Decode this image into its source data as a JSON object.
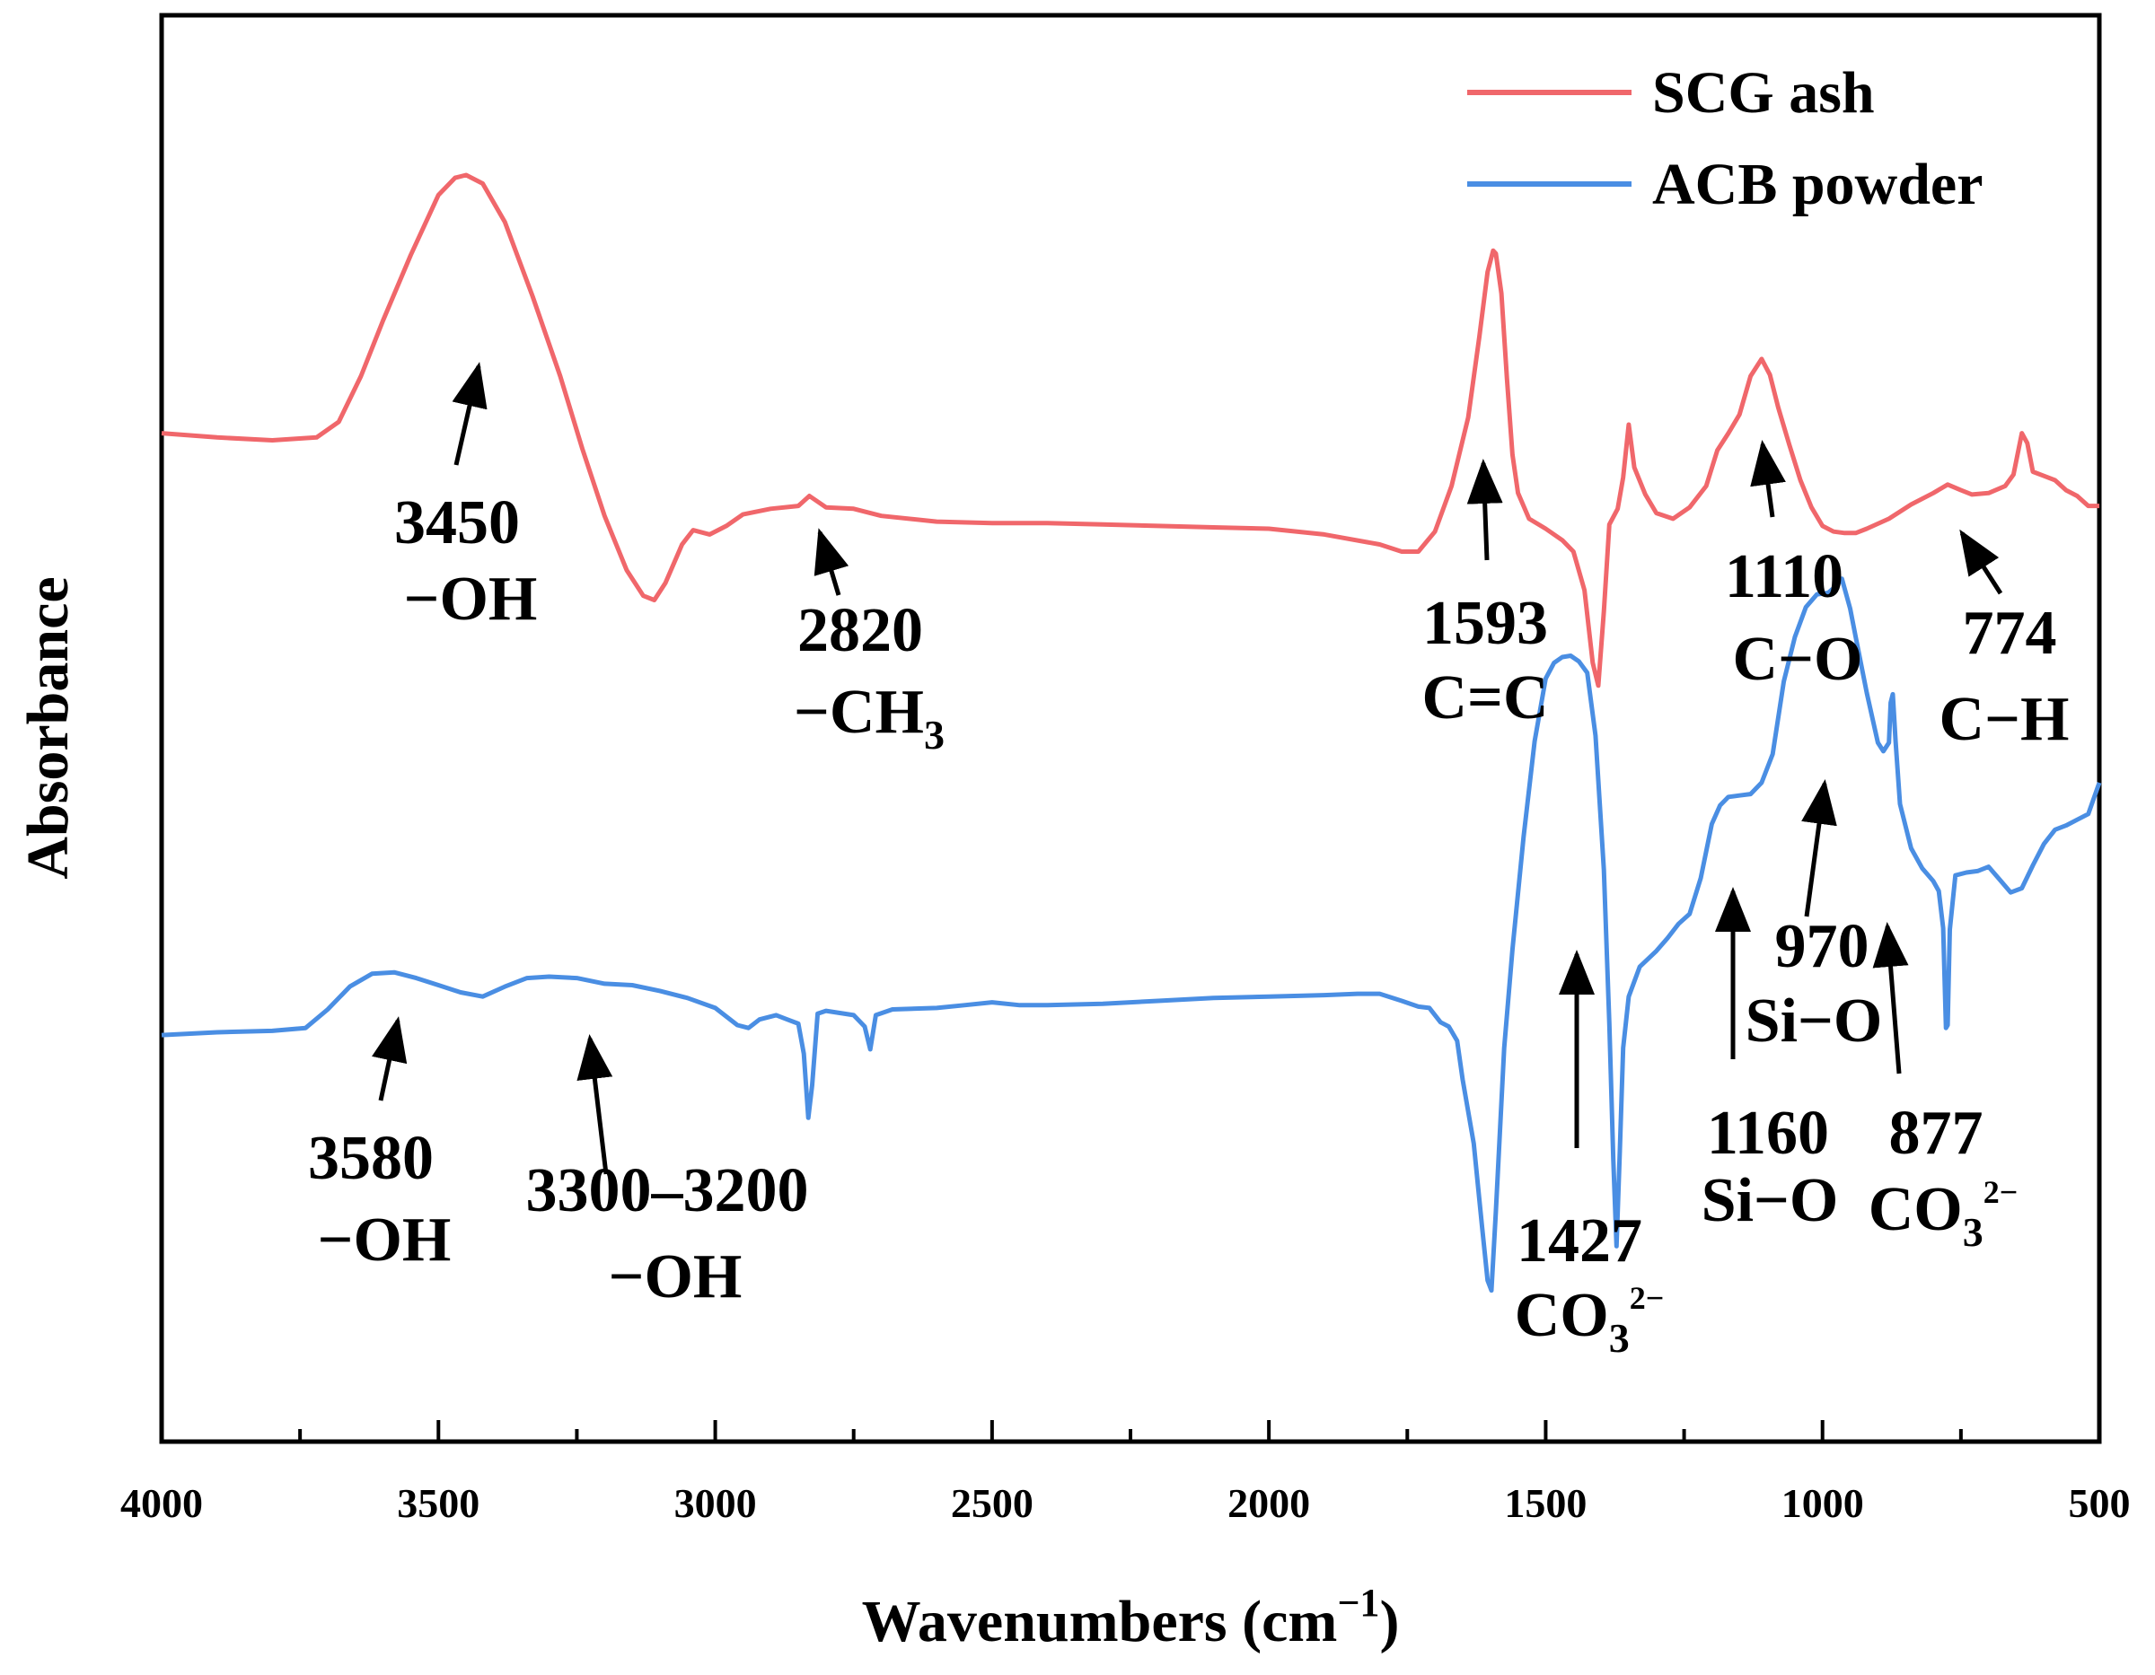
{
  "chart_data": {
    "type": "line",
    "title": "",
    "xlabel": "Wavenumbers (cm",
    "xlabel_sup": "−1",
    "xlabel_close": ")",
    "ylabel": "Absorbance",
    "xlim": [
      4000,
      500
    ],
    "ylim": [
      0,
      100
    ],
    "x_reversed": true,
    "y_ticks_shown": false,
    "x_ticks": [
      4000,
      3500,
      3000,
      2500,
      2000,
      1500,
      1000,
      500
    ],
    "x_tick_labels": [
      "4000",
      "3500",
      "3000",
      "2500",
      "2000",
      "1500",
      "1000",
      "500"
    ],
    "legend_position": "top-right",
    "series": [
      {
        "name": "SCG ash",
        "color": "#f0676b",
        "points": [
          [
            4000,
            70.7
          ],
          [
            3900,
            70.4
          ],
          [
            3800,
            70.2
          ],
          [
            3720,
            70.4
          ],
          [
            3680,
            71.5
          ],
          [
            3640,
            74.7
          ],
          [
            3600,
            78.6
          ],
          [
            3550,
            83.2
          ],
          [
            3500,
            87.4
          ],
          [
            3470,
            88.6
          ],
          [
            3450,
            88.8
          ],
          [
            3420,
            88.2
          ],
          [
            3380,
            85.5
          ],
          [
            3330,
            80.3
          ],
          [
            3280,
            74.7
          ],
          [
            3240,
            69.6
          ],
          [
            3200,
            64.9
          ],
          [
            3160,
            61.1
          ],
          [
            3130,
            59.3
          ],
          [
            3110,
            59.0
          ],
          [
            3090,
            60.2
          ],
          [
            3060,
            62.9
          ],
          [
            3040,
            63.9
          ],
          [
            3010,
            63.6
          ],
          [
            2980,
            64.2
          ],
          [
            2950,
            65.0
          ],
          [
            2900,
            65.4
          ],
          [
            2850,
            65.6
          ],
          [
            2830,
            66.3
          ],
          [
            2800,
            65.5
          ],
          [
            2750,
            65.4
          ],
          [
            2700,
            64.9
          ],
          [
            2600,
            64.5
          ],
          [
            2500,
            64.4
          ],
          [
            2400,
            64.4
          ],
          [
            2300,
            64.3
          ],
          [
            2200,
            64.2
          ],
          [
            2100,
            64.1
          ],
          [
            2000,
            64.0
          ],
          [
            1900,
            63.6
          ],
          [
            1800,
            62.9
          ],
          [
            1760,
            62.4
          ],
          [
            1730,
            62.4
          ],
          [
            1700,
            63.8
          ],
          [
            1670,
            67.0
          ],
          [
            1640,
            71.8
          ],
          [
            1620,
            77.4
          ],
          [
            1605,
            82.0
          ],
          [
            1595,
            83.5
          ],
          [
            1590,
            83.3
          ],
          [
            1580,
            80.5
          ],
          [
            1570,
            74.5
          ],
          [
            1560,
            69.2
          ],
          [
            1550,
            66.5
          ],
          [
            1530,
            64.7
          ],
          [
            1500,
            64.0
          ],
          [
            1470,
            63.2
          ],
          [
            1450,
            62.4
          ],
          [
            1430,
            59.7
          ],
          [
            1415,
            54.6
          ],
          [
            1405,
            53.0
          ],
          [
            1395,
            58.2
          ],
          [
            1385,
            64.3
          ],
          [
            1370,
            65.4
          ],
          [
            1360,
            67.6
          ],
          [
            1350,
            71.3
          ],
          [
            1340,
            68.3
          ],
          [
            1320,
            66.4
          ],
          [
            1300,
            65.1
          ],
          [
            1270,
            64.7
          ],
          [
            1240,
            65.5
          ],
          [
            1210,
            67.0
          ],
          [
            1190,
            69.5
          ],
          [
            1170,
            70.7
          ],
          [
            1150,
            72.0
          ],
          [
            1130,
            74.7
          ],
          [
            1110,
            75.9
          ],
          [
            1095,
            74.8
          ],
          [
            1080,
            72.5
          ],
          [
            1060,
            69.9
          ],
          [
            1040,
            67.4
          ],
          [
            1020,
            65.5
          ],
          [
            1000,
            64.2
          ],
          [
            980,
            63.8
          ],
          [
            960,
            63.7
          ],
          [
            940,
            63.7
          ],
          [
            920,
            64.0
          ],
          [
            880,
            64.7
          ],
          [
            840,
            65.7
          ],
          [
            800,
            66.5
          ],
          [
            774,
            67.1
          ],
          [
            750,
            66.7
          ],
          [
            730,
            66.4
          ],
          [
            700,
            66.5
          ],
          [
            670,
            67.0
          ],
          [
            655,
            67.8
          ],
          [
            640,
            70.7
          ],
          [
            630,
            70.0
          ],
          [
            620,
            68.0
          ],
          [
            600,
            67.7
          ],
          [
            580,
            67.4
          ],
          [
            560,
            66.7
          ],
          [
            540,
            66.3
          ],
          [
            520,
            65.6
          ],
          [
            500,
            65.6
          ]
        ]
      },
      {
        "name": "ACB powder",
        "color": "#4a8ee3",
        "points": [
          [
            4000,
            28.5
          ],
          [
            3900,
            28.7
          ],
          [
            3800,
            28.8
          ],
          [
            3740,
            29.0
          ],
          [
            3700,
            30.3
          ],
          [
            3660,
            31.9
          ],
          [
            3620,
            32.8
          ],
          [
            3580,
            32.9
          ],
          [
            3540,
            32.5
          ],
          [
            3500,
            32.0
          ],
          [
            3460,
            31.5
          ],
          [
            3420,
            31.2
          ],
          [
            3380,
            31.9
          ],
          [
            3340,
            32.5
          ],
          [
            3300,
            32.6
          ],
          [
            3250,
            32.5
          ],
          [
            3200,
            32.1
          ],
          [
            3150,
            32.0
          ],
          [
            3100,
            31.6
          ],
          [
            3050,
            31.1
          ],
          [
            3000,
            30.4
          ],
          [
            2960,
            29.2
          ],
          [
            2940,
            29.0
          ],
          [
            2920,
            29.6
          ],
          [
            2890,
            29.9
          ],
          [
            2870,
            29.6
          ],
          [
            2850,
            29.3
          ],
          [
            2840,
            27.2
          ],
          [
            2832,
            22.7
          ],
          [
            2825,
            25.0
          ],
          [
            2815,
            30.0
          ],
          [
            2800,
            30.2
          ],
          [
            2750,
            29.9
          ],
          [
            2730,
            29.1
          ],
          [
            2720,
            27.5
          ],
          [
            2710,
            29.9
          ],
          [
            2680,
            30.3
          ],
          [
            2600,
            30.4
          ],
          [
            2550,
            30.6
          ],
          [
            2500,
            30.8
          ],
          [
            2450,
            30.6
          ],
          [
            2400,
            30.6
          ],
          [
            2300,
            30.7
          ],
          [
            2200,
            30.9
          ],
          [
            2100,
            31.1
          ],
          [
            2000,
            31.2
          ],
          [
            1900,
            31.3
          ],
          [
            1840,
            31.4
          ],
          [
            1800,
            31.4
          ],
          [
            1760,
            30.9
          ],
          [
            1730,
            30.5
          ],
          [
            1710,
            30.4
          ],
          [
            1690,
            29.4
          ],
          [
            1675,
            29.1
          ],
          [
            1660,
            28.1
          ],
          [
            1650,
            25.4
          ],
          [
            1630,
            20.9
          ],
          [
            1615,
            15.1
          ],
          [
            1605,
            11.3
          ],
          [
            1598,
            10.6
          ],
          [
            1590,
            16.1
          ],
          [
            1575,
            27.6
          ],
          [
            1560,
            34.5
          ],
          [
            1540,
            42.4
          ],
          [
            1520,
            49.1
          ],
          [
            1500,
            53.5
          ],
          [
            1485,
            54.6
          ],
          [
            1470,
            55.0
          ],
          [
            1455,
            55.1
          ],
          [
            1440,
            54.7
          ],
          [
            1425,
            53.9
          ],
          [
            1410,
            49.5
          ],
          [
            1395,
            40.1
          ],
          [
            1385,
            29.3
          ],
          [
            1378,
            19.8
          ],
          [
            1372,
            13.7
          ],
          [
            1366,
            20.4
          ],
          [
            1360,
            27.6
          ],
          [
            1350,
            31.2
          ],
          [
            1330,
            33.3
          ],
          [
            1300,
            34.4
          ],
          [
            1280,
            35.3
          ],
          [
            1260,
            36.3
          ],
          [
            1240,
            37.0
          ],
          [
            1220,
            39.5
          ],
          [
            1200,
            43.3
          ],
          [
            1185,
            44.6
          ],
          [
            1170,
            45.2
          ],
          [
            1150,
            45.3
          ],
          [
            1130,
            45.4
          ],
          [
            1110,
            46.2
          ],
          [
            1090,
            48.2
          ],
          [
            1070,
            53.3
          ],
          [
            1050,
            56.4
          ],
          [
            1030,
            58.5
          ],
          [
            1010,
            59.4
          ],
          [
            990,
            59.5
          ],
          [
            975,
            60.0
          ],
          [
            965,
            60.5
          ],
          [
            950,
            58.4
          ],
          [
            940,
            56.4
          ],
          [
            920,
            52.5
          ],
          [
            900,
            49.0
          ],
          [
            890,
            48.4
          ],
          [
            880,
            49.0
          ],
          [
            877,
            51.8
          ],
          [
            873,
            52.4
          ],
          [
            868,
            49.1
          ],
          [
            860,
            44.7
          ],
          [
            840,
            41.6
          ],
          [
            820,
            40.2
          ],
          [
            800,
            39.3
          ],
          [
            790,
            38.6
          ],
          [
            782,
            36.0
          ],
          [
            777,
            29.0
          ],
          [
            774,
            29.2
          ],
          [
            770,
            35.9
          ],
          [
            760,
            39.7
          ],
          [
            740,
            39.9
          ],
          [
            720,
            40.0
          ],
          [
            700,
            40.3
          ],
          [
            680,
            39.4
          ],
          [
            660,
            38.5
          ],
          [
            640,
            38.8
          ],
          [
            620,
            40.4
          ],
          [
            600,
            41.9
          ],
          [
            580,
            42.9
          ],
          [
            560,
            43.2
          ],
          [
            540,
            43.6
          ],
          [
            520,
            44.0
          ],
          [
            500,
            46.2
          ]
        ]
      }
    ],
    "annotations": [
      {
        "id": "scg-3450",
        "label": "3450",
        "assignment": "−OH"
      },
      {
        "id": "scg-2820",
        "label": "2820",
        "assignment": "−CH",
        "assignment_sub": "3"
      },
      {
        "id": "scg-1593",
        "label": "1593",
        "assignment": "C=C"
      },
      {
        "id": "scg-1110",
        "label": "1110",
        "assignment": "C−O"
      },
      {
        "id": "scg-774",
        "label": "774",
        "assignment": "C−H"
      },
      {
        "id": "acb-3580",
        "label": "3580",
        "assignment": "−OH"
      },
      {
        "id": "acb-3300-3200",
        "label": "3300–3200",
        "assignment": "−OH"
      },
      {
        "id": "acb-1427",
        "label": "1427",
        "assignment": "CO",
        "assignment_sub": "3",
        "assignment_sup": "2−"
      },
      {
        "id": "acb-1160",
        "label": "1160",
        "assignment": "Si−O"
      },
      {
        "id": "acb-970",
        "label": "970",
        "assignment": "Si−O"
      },
      {
        "id": "acb-877",
        "label": "877",
        "assignment": "CO",
        "assignment_sub": "3",
        "assignment_sup": "2−"
      }
    ]
  }
}
